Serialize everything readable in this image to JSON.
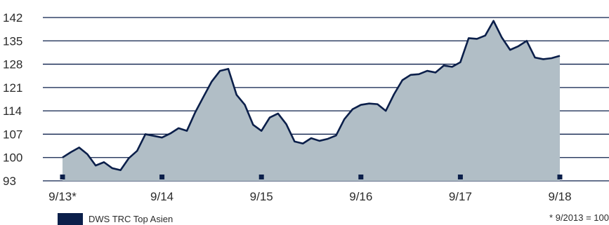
{
  "chart_data": {
    "type": "area",
    "x_ticks": [
      "9/13*",
      "9/14",
      "9/15",
      "9/16",
      "9/17",
      "9/18"
    ],
    "y_ticks": [
      93,
      100,
      107,
      114,
      121,
      128,
      135,
      142
    ],
    "ylim": [
      93,
      142
    ],
    "grid": true,
    "series": [
      {
        "name": "DWS TRC Top Asien",
        "color": "#0b1f4a",
        "fill": "#b1bec6",
        "x": [
          0,
          0.0833,
          0.1667,
          0.25,
          0.3333,
          0.4167,
          0.5,
          0.5833,
          0.6667,
          0.75,
          0.8333,
          0.9167,
          1.0,
          1.0833,
          1.1667,
          1.25,
          1.3333,
          1.4167,
          1.5,
          1.5833,
          1.6667,
          1.75,
          1.8333,
          1.9167,
          2.0,
          2.0833,
          2.1667,
          2.25,
          2.3333,
          2.4167,
          2.5,
          2.5833,
          2.6667,
          2.75,
          2.8333,
          2.9167,
          3.0,
          3.0833,
          3.1667,
          3.25,
          3.3333,
          3.4167,
          3.5,
          3.5833,
          3.6667,
          3.75,
          3.8333,
          3.9167,
          4.0,
          4.0833,
          4.1667,
          4.25,
          4.3333,
          4.4167,
          4.5,
          4.5833,
          4.6667,
          4.75,
          4.8333,
          4.9167,
          5.0
        ],
        "values": [
          100.0,
          101.6,
          103.0,
          101.0,
          97.6,
          98.6,
          96.8,
          96.2,
          99.8,
          102.0,
          107.0,
          106.5,
          106.0,
          107.2,
          108.8,
          108.0,
          113.5,
          118.2,
          122.8,
          126.0,
          126.6,
          118.8,
          115.8,
          109.8,
          108.0,
          112.0,
          113.2,
          110.0,
          104.8,
          104.2,
          105.8,
          105.0,
          105.6,
          106.6,
          111.5,
          114.5,
          115.8,
          116.2,
          116.0,
          114.0,
          119.0,
          123.2,
          124.8,
          125.0,
          126.0,
          125.5,
          127.6,
          127.2,
          128.6,
          135.8,
          135.6,
          136.6,
          141.0,
          136.0,
          132.3,
          133.4,
          135.0,
          130.0,
          129.5,
          129.8,
          130.5
        ]
      }
    ],
    "legend": {
      "label": "DWS TRC Top Asien",
      "position": "bottom-left"
    },
    "footnote": "* 9/2013 = 100"
  }
}
